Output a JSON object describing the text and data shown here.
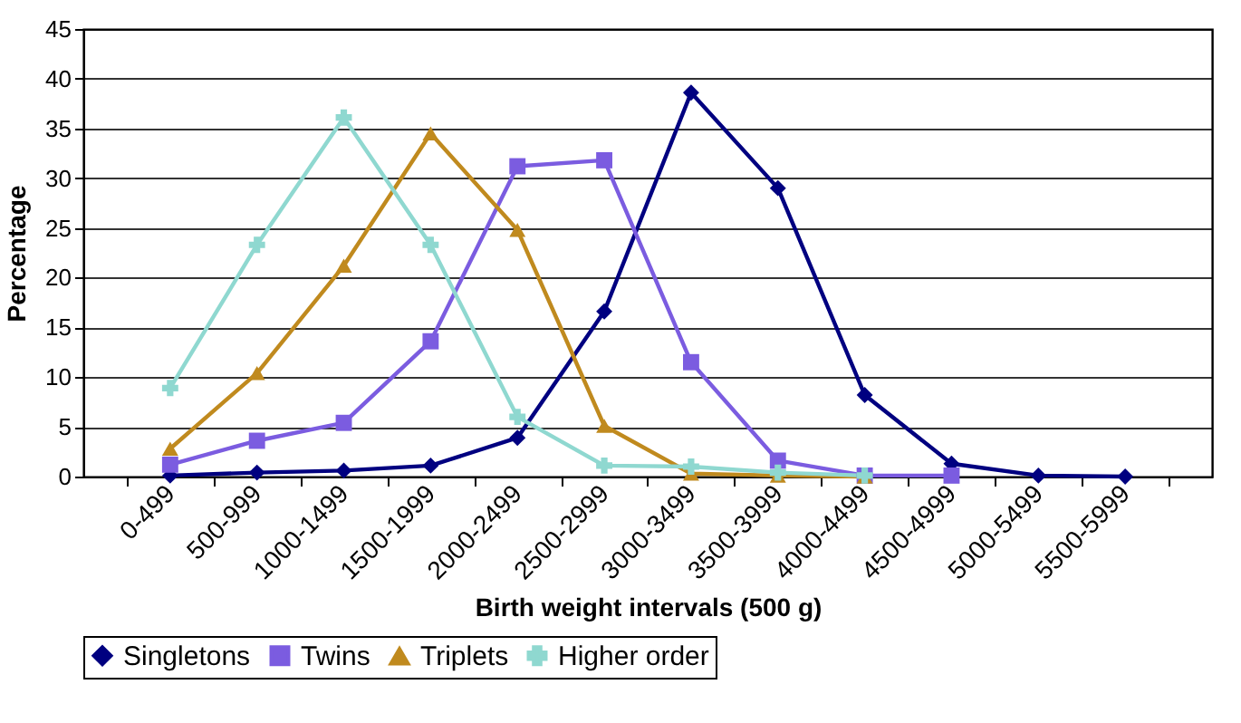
{
  "chart_data": {
    "type": "line",
    "xlabel": "Birth weight intervals (500 g)",
    "ylabel": "Percentage",
    "categories": [
      "0-499",
      "500-999",
      "1000-1499",
      "1500-1999",
      "2000-2499",
      "2500-2999",
      "3000-3499",
      "3500-3999",
      "4000-4499",
      "4500-4999",
      "5000-5499",
      "5500-5999"
    ],
    "series": [
      {
        "name": "Singletons",
        "color": "#000080",
        "marker": "diamond",
        "values": [
          0.1,
          0.4,
          0.6,
          1.1,
          3.9,
          16.6,
          38.6,
          29,
          8.2,
          1.3,
          0.1,
          0.0
        ]
      },
      {
        "name": "Twins",
        "color": "#7b5ce0",
        "marker": "square",
        "values": [
          1.2,
          3.6,
          5.4,
          13.6,
          31.2,
          31.8,
          11.5,
          1.6,
          0.1,
          0.1,
          null,
          null
        ]
      },
      {
        "name": "Triplets",
        "color": "#c08a1e",
        "marker": "triangle",
        "values": [
          2.8,
          10.4,
          21.2,
          34.5,
          24.8,
          5.1,
          0.3,
          0.1,
          0.0,
          null,
          null,
          null
        ]
      },
      {
        "name": "Higher order",
        "color": "#8fd8d0",
        "marker": "cross",
        "values": [
          8.9,
          23.3,
          36.1,
          23.3,
          6.0,
          1.1,
          1.0,
          0.4,
          0.1,
          null,
          null,
          null
        ]
      }
    ],
    "ylim": [
      0,
      45
    ],
    "yticks": [
      0,
      5,
      10,
      15,
      20,
      25,
      30,
      35,
      40,
      45
    ],
    "grid": "y",
    "legend": "bottom",
    "line_style": "solid"
  }
}
